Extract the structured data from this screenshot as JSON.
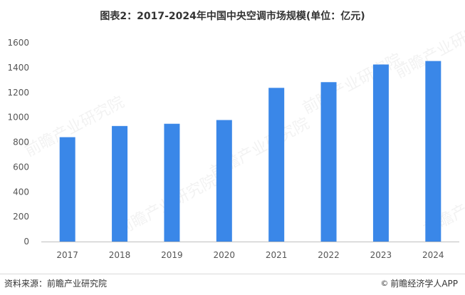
{
  "chart_data": {
    "type": "bar",
    "title": "图表2：2017-2024年中国中央空调市场规模(单位：亿元)",
    "categories": [
      "2017",
      "2018",
      "2019",
      "2020",
      "2021",
      "2022",
      "2023",
      "2024"
    ],
    "values": [
      840,
      930,
      948,
      978,
      1237,
      1283,
      1425,
      1453
    ],
    "ylim": [
      0,
      1600
    ],
    "yticks": [
      0,
      200,
      400,
      600,
      800,
      1000,
      1200,
      1400,
      1600
    ],
    "grid": false,
    "bar_color": "#3a87e8",
    "xlabel": "",
    "ylabel": ""
  },
  "watermark": "前瞻产业研究院",
  "footer": {
    "source": "资料来源：前瞻产业研究院",
    "brand_icon": "copyright-icon",
    "brand": "前瞻经济学人APP"
  },
  "colors": {
    "bar": "#3a87e8",
    "axis": "#bfbfbf"
  }
}
